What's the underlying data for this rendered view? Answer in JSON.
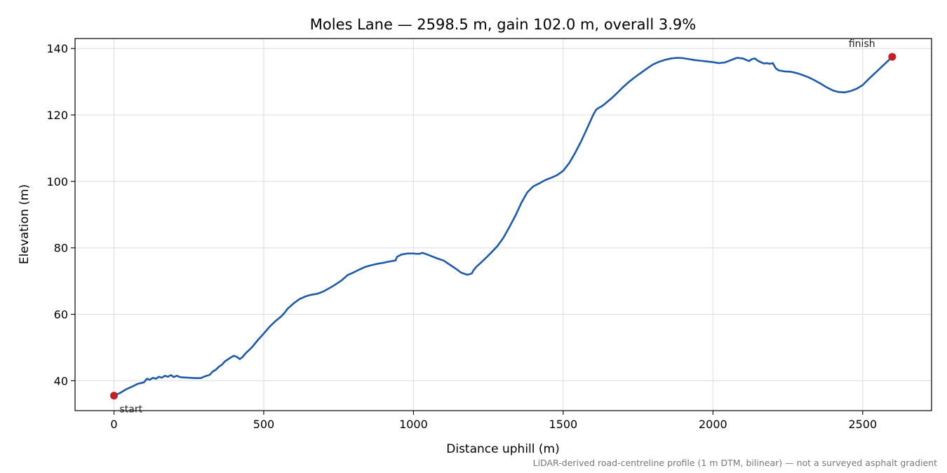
{
  "chart_data": {
    "type": "line",
    "title": "Moles Lane — 2598.5 m, gain 102.0 m, overall 3.9%",
    "xlabel": "Distance uphill (m)",
    "ylabel": "Elevation (m)",
    "xlim": [
      -130,
      2730
    ],
    "ylim": [
      31,
      143
    ],
    "xticks": [
      0,
      500,
      1000,
      1500,
      2000,
      2500
    ],
    "yticks": [
      40,
      60,
      80,
      100,
      120,
      140
    ],
    "grid": true,
    "footnote": "LiDAR-derived road-centreline profile (1 m DTM, bilinear) — not a surveyed asphalt gradient",
    "colors": {
      "line": "#1f5aa6",
      "marker": "#c0202a"
    },
    "series": [
      {
        "x": [
          0,
          20,
          40,
          60,
          80,
          100,
          110,
          120,
          130,
          140,
          150,
          160,
          170,
          180,
          190,
          200,
          210,
          220,
          230,
          250,
          270,
          290,
          300,
          320,
          330,
          340,
          350,
          360,
          370,
          380,
          390,
          400,
          410,
          420,
          430,
          440,
          460,
          480,
          500,
          520,
          540,
          560,
          570,
          580,
          590,
          600,
          620,
          640,
          660,
          680,
          700,
          720,
          740,
          760,
          780,
          800,
          820,
          840,
          860,
          880,
          900,
          920,
          940,
          945,
          960,
          980,
          1000,
          1010,
          1020,
          1030,
          1040,
          1060,
          1080,
          1100,
          1120,
          1140,
          1160,
          1180,
          1195,
          1200,
          1210,
          1220,
          1240,
          1260,
          1280,
          1300,
          1320,
          1340,
          1360,
          1380,
          1400,
          1420,
          1440,
          1460,
          1480,
          1500,
          1520,
          1540,
          1560,
          1580,
          1600,
          1610,
          1620,
          1630,
          1640,
          1660,
          1680,
          1700,
          1720,
          1740,
          1760,
          1780,
          1800,
          1820,
          1840,
          1860,
          1880,
          1900,
          1920,
          1940,
          1960,
          1980,
          2000,
          2020,
          2040,
          2060,
          2080,
          2100,
          2110,
          2120,
          2130,
          2140,
          2150,
          2160,
          2170,
          2180,
          2190,
          2200,
          2210,
          2220,
          2240,
          2260,
          2280,
          2300,
          2320,
          2340,
          2360,
          2380,
          2400,
          2420,
          2440,
          2460,
          2480,
          2500,
          2520,
          2540,
          2560,
          2580,
          2598.5
        ],
        "y": [
          35.5,
          36.3,
          37.4,
          38.2,
          39.1,
          39.5,
          40.6,
          40.3,
          40.9,
          40.6,
          41.2,
          40.9,
          41.5,
          41.2,
          41.7,
          41.1,
          41.5,
          41.1,
          41.0,
          40.9,
          40.8,
          40.8,
          41.2,
          41.8,
          42.8,
          43.3,
          44.2,
          44.8,
          45.8,
          46.4,
          47.0,
          47.5,
          47.2,
          46.5,
          47.2,
          48.3,
          50.0,
          52.2,
          54.2,
          56.3,
          58.0,
          59.5,
          60.5,
          61.7,
          62.5,
          63.3,
          64.6,
          65.4,
          65.9,
          66.2,
          66.9,
          67.9,
          69.0,
          70.2,
          71.8,
          72.6,
          73.5,
          74.3,
          74.8,
          75.2,
          75.5,
          75.9,
          76.2,
          77.3,
          78.0,
          78.3,
          78.3,
          78.2,
          78.2,
          78.5,
          78.2,
          77.5,
          76.8,
          76.2,
          75.0,
          73.8,
          72.5,
          71.9,
          72.3,
          73.2,
          74.3,
          75.1,
          76.8,
          78.6,
          80.5,
          83.0,
          86.2,
          89.6,
          93.5,
          96.7,
          98.5,
          99.4,
          100.4,
          101.1,
          101.9,
          103.2,
          105.5,
          108.6,
          112.1,
          116.0,
          120.0,
          121.6,
          122.2,
          122.7,
          123.4,
          124.9,
          126.6,
          128.4,
          130.0,
          131.4,
          132.7,
          134.0,
          135.2,
          136.0,
          136.6,
          137.0,
          137.2,
          137.1,
          136.8,
          136.5,
          136.3,
          136.1,
          135.9,
          135.6,
          135.8,
          136.5,
          137.2,
          137.0,
          136.6,
          136.2,
          136.8,
          137.0,
          136.3,
          135.9,
          135.5,
          135.6,
          135.4,
          135.6,
          134.0,
          133.4,
          133.1,
          133.0,
          132.6,
          132.0,
          131.3,
          130.4,
          129.4,
          128.3,
          127.4,
          126.9,
          126.8,
          127.2,
          127.9,
          129.0,
          130.8,
          132.5,
          134.2,
          135.9,
          137.5
        ]
      }
    ],
    "annotations": [
      {
        "text": "start",
        "x": 0,
        "y": 35.5
      },
      {
        "text": "finish",
        "x": 2598.5,
        "y": 137.5
      }
    ]
  }
}
